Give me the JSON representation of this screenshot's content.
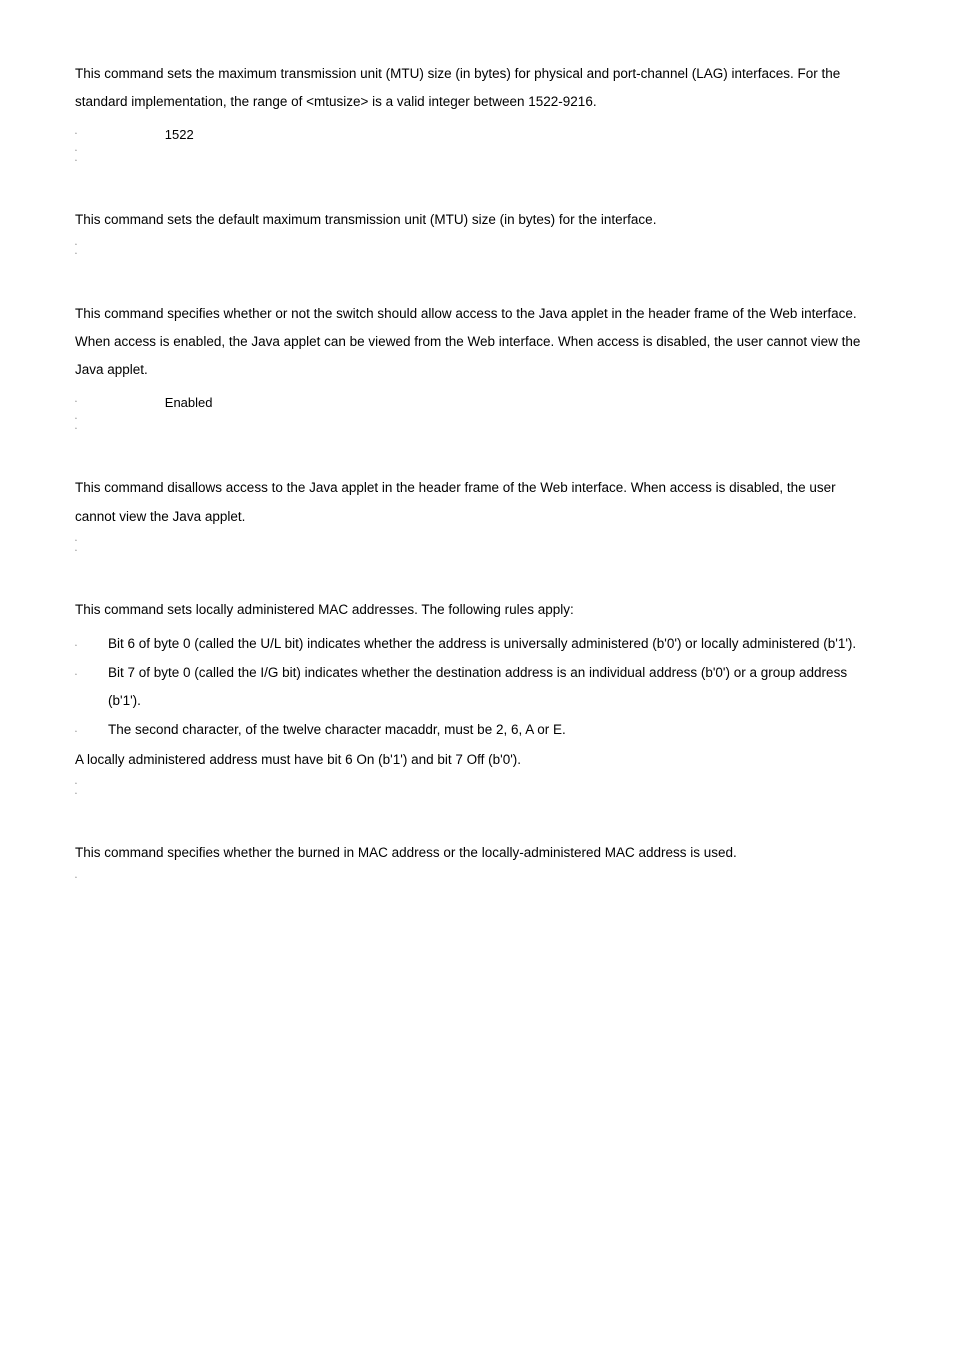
{
  "sections": [
    {
      "desc": "This command sets the maximum transmission unit (MTU) size (in bytes) for physical and port-channel (LAG) interfaces. For the standard implementation, the range of <mtusize> is a valid integer between 1522-9216.",
      "specs": [
        "1522",
        "",
        ""
      ]
    },
    {
      "desc": "This command sets the default maximum transmission unit (MTU) size (in bytes) for the interface.",
      "specs": [
        "",
        ""
      ]
    },
    {
      "desc": "This command specifies whether or not the switch should allow access to the Java applet in the header frame of the Web interface. When access is enabled, the Java applet can be viewed from the Web interface. When access is disabled, the user cannot view the Java applet.",
      "specs": [
        "Enabled",
        "",
        ""
      ]
    },
    {
      "desc": "This command disallows access to the Java applet in the header frame of the Web interface. When access is disabled, the user cannot view the Java applet.",
      "specs": [
        "",
        ""
      ]
    },
    {
      "desc": "This command sets locally administered MAC addresses. The following rules apply:",
      "rules": [
        "Bit 6 of byte 0 (called the U/L bit) indicates whether the address is universally administered (b'0') or locally administered (b'1').",
        "Bit 7 of byte 0 (called the I/G bit) indicates whether the destination address is an individual address (b'0') or a group address (b'1').",
        "The second character, of the twelve character macaddr, must be 2, 6, A or E."
      ],
      "footer": "A locally administered address must have bit 6 On (b'1') and bit 7 Off (b'0').",
      "specs": [
        "",
        ""
      ]
    },
    {
      "desc": "This command specifies whether the burned in MAC address or the locally-administered MAC address is used.",
      "specs": [
        ""
      ]
    }
  ],
  "bullet_char": "▫"
}
